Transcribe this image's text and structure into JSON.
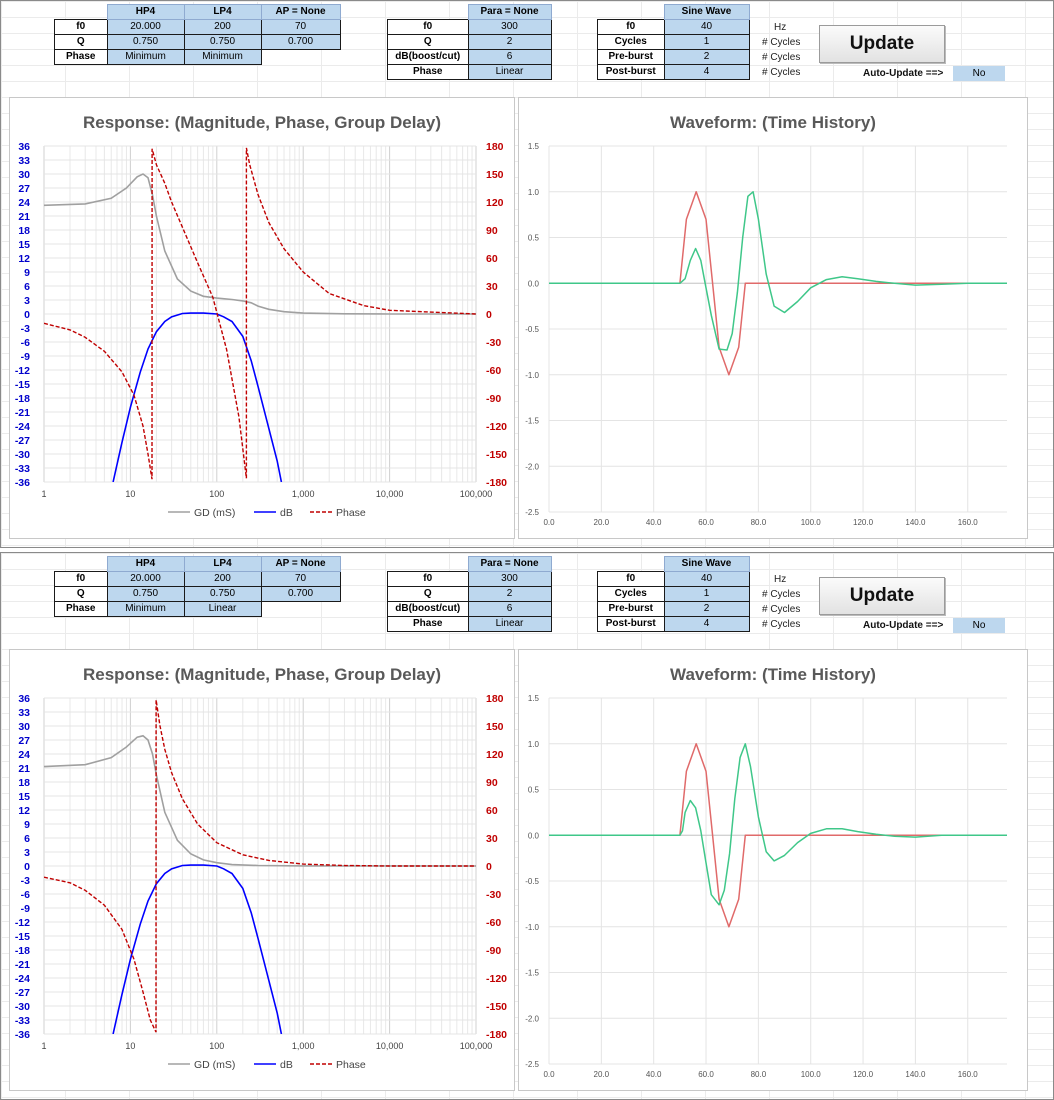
{
  "panels": [
    {
      "filters": {
        "headers": [
          "HP4",
          "LP4",
          "AP = None"
        ],
        "rows": [
          {
            "label": "f0",
            "values": [
              "20.000",
              "200",
              "70"
            ]
          },
          {
            "label": "Q",
            "values": [
              "0.750",
              "0.750",
              "0.700"
            ]
          },
          {
            "label": "Phase",
            "values": [
              "Minimum",
              "Minimum"
            ]
          }
        ]
      },
      "para": {
        "header": "Para = None",
        "rows": [
          {
            "label": "f0",
            "value": "300"
          },
          {
            "label": "Q",
            "value": "2"
          },
          {
            "label": "dB(boost/cut)",
            "value": "6"
          },
          {
            "label": "Phase",
            "value": "Linear"
          }
        ]
      },
      "sine": {
        "header": "Sine Wave",
        "rows": [
          {
            "label": "f0",
            "value": "40",
            "unit": "Hz"
          },
          {
            "label": "Cycles",
            "value": "1",
            "unit": "# Cycles"
          },
          {
            "label": "Pre-burst",
            "value": "2",
            "unit": "# Cycles"
          },
          {
            "label": "Post-burst",
            "value": "4",
            "unit": "# Cycles"
          }
        ]
      },
      "update_label": "Update",
      "auto_update": {
        "label": "Auto-Update ==>",
        "value": "No"
      },
      "response_title": "Response: (Magnitude, Phase, Group Delay)",
      "waveform_title": "Waveform: (Time History)"
    },
    {
      "filters": {
        "headers": [
          "HP4",
          "LP4",
          "AP = None"
        ],
        "rows": [
          {
            "label": "f0",
            "values": [
              "20.000",
              "200",
              "70"
            ]
          },
          {
            "label": "Q",
            "values": [
              "0.750",
              "0.750",
              "0.700"
            ]
          },
          {
            "label": "Phase",
            "values": [
              "Minimum",
              "Linear"
            ]
          }
        ]
      },
      "para": {
        "header": "Para = None",
        "rows": [
          {
            "label": "f0",
            "value": "300"
          },
          {
            "label": "Q",
            "value": "2"
          },
          {
            "label": "dB(boost/cut)",
            "value": "6"
          },
          {
            "label": "Phase",
            "value": "Linear"
          }
        ]
      },
      "sine": {
        "header": "Sine Wave",
        "rows": [
          {
            "label": "f0",
            "value": "40",
            "unit": "Hz"
          },
          {
            "label": "Cycles",
            "value": "1",
            "unit": "# Cycles"
          },
          {
            "label": "Pre-burst",
            "value": "2",
            "unit": "# Cycles"
          },
          {
            "label": "Post-burst",
            "value": "4",
            "unit": "# Cycles"
          }
        ]
      },
      "update_label": "Update",
      "auto_update": {
        "label": "Auto-Update ==>",
        "value": "No"
      },
      "response_title": "Response: (Magnitude, Phase, Group Delay)",
      "waveform_title": "Waveform: (Time History)"
    }
  ],
  "chart_data": [
    {
      "type": "line",
      "title": "Response: (Magnitude, Phase, Group Delay)",
      "x_scale": "log",
      "xlim": [
        1,
        100000
      ],
      "x_ticks": [
        "1",
        "10",
        "100",
        "1,000",
        "10,000",
        "100,000"
      ],
      "y_left": {
        "min": -36,
        "max": 36,
        "ticks": [
          "36",
          "33",
          "30",
          "27",
          "24",
          "21",
          "18",
          "15",
          "12",
          "9",
          "6",
          "3",
          "0",
          "-3",
          "-6",
          "-9",
          "-12",
          "-15",
          "-18",
          "-21",
          "-24",
          "-27",
          "-30",
          "-33",
          "-36"
        ],
        "color": "#0000cc"
      },
      "y_right": {
        "min": -180,
        "max": 180,
        "ticks": [
          "180",
          "150",
          "120",
          "90",
          "60",
          "30",
          "0",
          "-30",
          "-60",
          "-90",
          "-120",
          "-150",
          "-180"
        ],
        "color": "#c00000"
      },
      "legend": [
        "GD (mS)",
        "dB",
        "Phase"
      ],
      "legend_position": "bottom",
      "series": [
        {
          "name": "GD (mS)",
          "color": "#a0a0a0",
          "axis": "left",
          "x": [
            1,
            3,
            6,
            9,
            12,
            14,
            16,
            18,
            20,
            25,
            35,
            50,
            70,
            100,
            150,
            200,
            250,
            300,
            400,
            600,
            1000,
            3000,
            10000,
            100000
          ],
          "y": [
            23.3,
            23.6,
            24.8,
            27.0,
            29.4,
            30.0,
            29.2,
            25.5,
            21.0,
            13.5,
            7.5,
            4.9,
            3.8,
            3.4,
            3.1,
            2.8,
            2.4,
            1.7,
            1.0,
            0.5,
            0.2,
            0.05,
            0.01,
            0
          ]
        },
        {
          "name": "dB",
          "color": "#0000ff",
          "axis": "left",
          "x": [
            6.3,
            8,
            10,
            13,
            16,
            20,
            25,
            30,
            40,
            50,
            70,
            100,
            120,
            150,
            200,
            250,
            300,
            400,
            500,
            560
          ],
          "y": [
            -36,
            -27.5,
            -20,
            -12.5,
            -7.5,
            -3.8,
            -1.6,
            -0.6,
            0.1,
            0.2,
            0.2,
            0,
            -0.6,
            -1.6,
            -4.8,
            -10,
            -15.5,
            -24.5,
            -31.5,
            -36
          ]
        },
        {
          "name": "Phase",
          "color": "#c00000",
          "axis": "right",
          "dashed": true,
          "x": [
            1,
            2,
            3,
            5,
            8,
            11,
            14,
            16,
            17.8,
            17.81,
            20,
            25,
            30,
            40,
            60,
            90,
            130,
            180,
            220,
            220.01,
            240,
            300,
            400,
            600,
            1000,
            2000,
            5000,
            10000,
            100000
          ],
          "y": [
            -10,
            -17,
            -25,
            -40,
            -62,
            -87,
            -120,
            -150,
            -177,
            177,
            160,
            140,
            120,
            93,
            55,
            18,
            -38,
            -110,
            -176,
            178,
            160,
            128,
            98,
            70,
            45,
            22,
            9,
            4,
            0
          ]
        }
      ]
    },
    {
      "type": "line",
      "title": "Waveform: (Time History)",
      "xlim": [
        0,
        175
      ],
      "ylim": [
        -2.5,
        1.5
      ],
      "x_ticks": [
        "0.0",
        "20.0",
        "40.0",
        "60.0",
        "80.0",
        "100.0",
        "120.0",
        "140.0",
        "160.0"
      ],
      "y_ticks": [
        "1.5",
        "1.0",
        "0.5",
        "0.0",
        "-0.5",
        "-1.0",
        "-1.5",
        "-2.0",
        "-2.5"
      ],
      "series": [
        {
          "name": "input",
          "color": "#e06a6a",
          "x": [
            0,
            50,
            52.5,
            56.25,
            60,
            62.5,
            65,
            68.75,
            72.5,
            75,
            175
          ],
          "y": [
            0,
            0,
            0.7,
            1.0,
            0.7,
            0,
            -0.7,
            -1.0,
            -0.7,
            0,
            0
          ]
        },
        {
          "name": "output",
          "color": "#3fc789",
          "x": [
            0,
            50,
            52,
            54,
            56,
            58,
            60,
            62,
            65,
            68,
            70,
            72,
            74,
            76,
            78,
            80,
            83,
            86,
            90,
            95,
            100,
            106,
            112,
            118,
            125,
            132,
            140,
            150,
            160,
            175
          ],
          "y": [
            0,
            0,
            0.05,
            0.25,
            0.38,
            0.25,
            -0.05,
            -0.35,
            -0.72,
            -0.73,
            -0.55,
            -0.1,
            0.5,
            0.95,
            1.0,
            0.7,
            0.1,
            -0.25,
            -0.32,
            -0.2,
            -0.05,
            0.04,
            0.07,
            0.05,
            0.02,
            0,
            -0.02,
            -0.01,
            0,
            0
          ]
        }
      ]
    },
    {
      "type": "line",
      "title": "Response: (Magnitude, Phase, Group Delay)",
      "x_scale": "log",
      "xlim": [
        1,
        100000
      ],
      "x_ticks": [
        "1",
        "10",
        "100",
        "1,000",
        "10,000",
        "100,000"
      ],
      "y_left": {
        "min": -36,
        "max": 36,
        "ticks": [
          "36",
          "33",
          "30",
          "27",
          "24",
          "21",
          "18",
          "15",
          "12",
          "9",
          "6",
          "3",
          "0",
          "-3",
          "-6",
          "-9",
          "-12",
          "-15",
          "-18",
          "-21",
          "-24",
          "-27",
          "-30",
          "-33",
          "-36"
        ],
        "color": "#0000cc"
      },
      "y_right": {
        "min": -180,
        "max": 180,
        "ticks": [
          "180",
          "150",
          "120",
          "90",
          "60",
          "30",
          "0",
          "-30",
          "-60",
          "-90",
          "-120",
          "-150",
          "-180"
        ],
        "color": "#c00000"
      },
      "legend": [
        "GD (mS)",
        "dB",
        "Phase"
      ],
      "legend_position": "bottom",
      "series": [
        {
          "name": "GD (mS)",
          "color": "#a0a0a0",
          "axis": "left",
          "x": [
            1,
            3,
            6,
            9,
            12,
            14,
            16,
            18,
            20,
            25,
            35,
            50,
            70,
            100,
            150,
            300,
            1000,
            100000
          ],
          "y": [
            21.3,
            21.7,
            23.2,
            25.5,
            27.6,
            27.9,
            27.0,
            24.0,
            19.5,
            11.5,
            5.5,
            2.6,
            1.3,
            0.7,
            0.3,
            0.1,
            0.02,
            0
          ]
        },
        {
          "name": "dB",
          "color": "#0000ff",
          "axis": "left",
          "x": [
            6.3,
            8,
            10,
            13,
            16,
            20,
            25,
            30,
            40,
            50,
            70,
            100,
            120,
            150,
            200,
            250,
            300,
            400,
            500,
            560
          ],
          "y": [
            -36,
            -27.5,
            -20,
            -12.5,
            -7.5,
            -3.8,
            -1.6,
            -0.6,
            0.1,
            0.2,
            0.2,
            0,
            -0.6,
            -1.6,
            -4.8,
            -10,
            -15.5,
            -24.5,
            -31.5,
            -36
          ]
        },
        {
          "name": "Phase",
          "color": "#c00000",
          "axis": "right",
          "dashed": true,
          "x": [
            1,
            2,
            3,
            5,
            8,
            11,
            14,
            17,
            19.8,
            19.81,
            22,
            25,
            30,
            40,
            60,
            100,
            200,
            400,
            1000,
            3000,
            10000,
            100000
          ],
          "y": [
            -12,
            -18,
            -26,
            -42,
            -68,
            -100,
            -135,
            -165,
            -178,
            178,
            150,
            125,
            100,
            72,
            45,
            25,
            12,
            6,
            2,
            0.5,
            0,
            0
          ]
        }
      ]
    },
    {
      "type": "line",
      "title": "Waveform: (Time History)",
      "xlim": [
        0,
        175
      ],
      "ylim": [
        -2.5,
        1.5
      ],
      "x_ticks": [
        "0.0",
        "20.0",
        "40.0",
        "60.0",
        "80.0",
        "100.0",
        "120.0",
        "140.0",
        "160.0"
      ],
      "y_ticks": [
        "1.5",
        "1.0",
        "0.5",
        "0.0",
        "-0.5",
        "-1.0",
        "-1.5",
        "-2.0",
        "-2.5"
      ],
      "series": [
        {
          "name": "input",
          "color": "#e06a6a",
          "x": [
            0,
            50,
            52.5,
            56.25,
            60,
            62.5,
            65,
            68.75,
            72.5,
            75,
            175
          ],
          "y": [
            0,
            0,
            0.7,
            1.0,
            0.7,
            0,
            -0.7,
            -1.0,
            -0.7,
            0,
            0
          ]
        },
        {
          "name": "output",
          "color": "#3fc789",
          "x": [
            0,
            50,
            51,
            52,
            54,
            56,
            58,
            60,
            62,
            65,
            67,
            69,
            71,
            73,
            75,
            77,
            80,
            83,
            86,
            90,
            95,
            100,
            106,
            112,
            118,
            125,
            132,
            140,
            150,
            175
          ],
          "y": [
            0,
            0,
            0.05,
            0.25,
            0.38,
            0.3,
            0.05,
            -0.3,
            -0.65,
            -0.76,
            -0.6,
            -0.2,
            0.4,
            0.85,
            1.0,
            0.75,
            0.2,
            -0.18,
            -0.28,
            -0.22,
            -0.08,
            0.02,
            0.07,
            0.07,
            0.04,
            0.01,
            -0.01,
            -0.02,
            0,
            0
          ]
        }
      ]
    }
  ]
}
